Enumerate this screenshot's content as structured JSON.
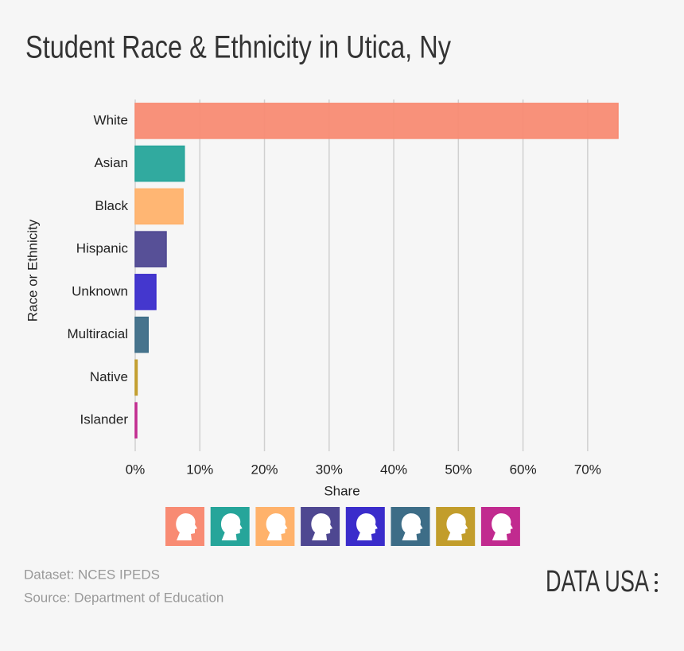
{
  "chart_data": {
    "type": "hbar",
    "title": "Student Race & Ethnicity in Utica, Ny",
    "x_label": "Share",
    "y_label": "Race or Ethnicity",
    "categories": [
      "White",
      "Asian",
      "Black",
      "Hispanic",
      "Unknown",
      "Multiracial",
      "Native",
      "Islander"
    ],
    "values": [
      74.7,
      7.6,
      7.4,
      4.8,
      3.2,
      2.0,
      0.3,
      0.1
    ],
    "colors": [
      "#f88b73",
      "#26a59a",
      "#ffb26b",
      "#4e4791",
      "#3a2ccb",
      "#3d6d87",
      "#c29d2b",
      "#c12a8f"
    ],
    "xlim": [
      0,
      79
    ],
    "xticks": [
      {
        "value": 0,
        "label": "0%"
      },
      {
        "value": 10,
        "label": "10%"
      },
      {
        "value": 20,
        "label": "20%"
      },
      {
        "value": 30,
        "label": "30%"
      },
      {
        "value": 40,
        "label": "40%"
      },
      {
        "value": 50,
        "label": "50%"
      },
      {
        "value": 60,
        "label": "60%"
      },
      {
        "value": 70,
        "label": "70%"
      }
    ],
    "grid": true,
    "footnotes": [
      "Dataset: NCES IPEDS",
      "Source: Department of Education"
    ],
    "logo": "DATA USA"
  }
}
